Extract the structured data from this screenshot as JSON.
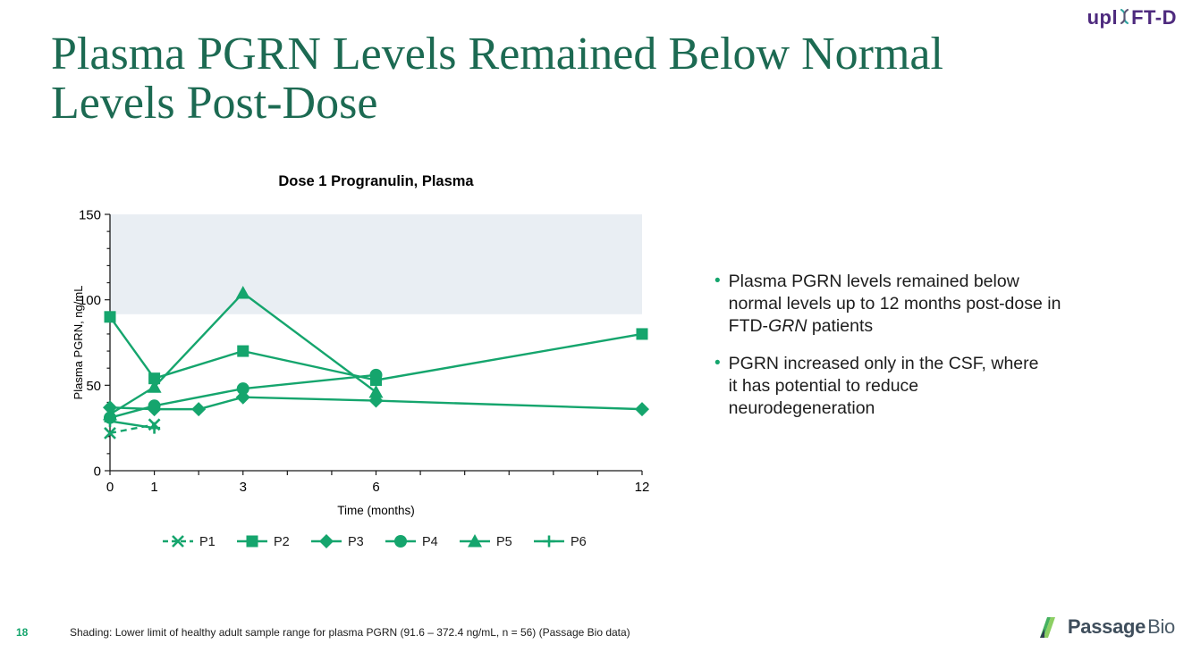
{
  "slide": {
    "title_lines": [
      "Plasma PGRN Levels Remained Below Normal",
      "Levels Post-Dose"
    ]
  },
  "logos": {
    "uplift": {
      "pre": "upl",
      "post": "FT-D"
    },
    "passage": {
      "bold": "Passage",
      "regular": "Bio"
    }
  },
  "bullets": [
    [
      {
        "t": "Plasma PGRN levels remained below\nnormal levels up to 12 months post-dose in\nFTD-"
      },
      {
        "t": "GRN",
        "italic": true
      },
      {
        "t": " patients"
      }
    ],
    [
      {
        "t": "PGRN increased only in the CSF, where\nit has potential to reduce\nneurodegeneration"
      }
    ]
  ],
  "footer": {
    "page_number": "18",
    "note": "Shading: Lower limit of healthy adult sample range for plasma PGRN (91.6 – 372.4 ng/mL, n = 56) (Passage Bio data)"
  },
  "colors": {
    "accent_green": "#15a56d",
    "title_green": "#1c6a52",
    "logo_purple": "#4e2a7e",
    "helix_teal": "#2fa3a0",
    "shading": "#e9eef3",
    "brand_slate": "#3f4e5c",
    "text_dark": "#1d1d1d",
    "axis_black": "#1a1a1a"
  },
  "chart_data": {
    "type": "line",
    "title": "Dose 1 Progranulin, Plasma",
    "xlabel": "Time (months)",
    "ylabel": "Plasma PGRN, ng/mL",
    "xlim": [
      0,
      12
    ],
    "ylim": [
      0,
      150
    ],
    "x_major_ticks": [
      0,
      1,
      3,
      6,
      12
    ],
    "x_minor_step": 1,
    "y_major_ticks": [
      0,
      50,
      100,
      150
    ],
    "y_minor_step": 10,
    "grid": false,
    "legend_position": "bottom",
    "shaded_band": {
      "from": 91.6,
      "to": 150
    },
    "series": [
      {
        "name": "P1",
        "marker": "x",
        "dashed": true,
        "points": [
          [
            0,
            22
          ],
          [
            1,
            27
          ]
        ]
      },
      {
        "name": "P2",
        "marker": "square",
        "dashed": false,
        "points": [
          [
            0,
            90
          ],
          [
            1,
            54
          ],
          [
            3,
            70
          ],
          [
            6,
            53
          ],
          [
            12,
            80
          ]
        ]
      },
      {
        "name": "P3",
        "marker": "diamond",
        "dashed": false,
        "points": [
          [
            0,
            37
          ],
          [
            1,
            36
          ],
          [
            2,
            36
          ],
          [
            3,
            43
          ],
          [
            6,
            41
          ],
          [
            12,
            36
          ]
        ]
      },
      {
        "name": "P4",
        "marker": "circle",
        "dashed": false,
        "points": [
          [
            0,
            31
          ],
          [
            1,
            38
          ],
          [
            3,
            48
          ],
          [
            6,
            56
          ]
        ]
      },
      {
        "name": "P5",
        "marker": "triangle",
        "dashed": false,
        "points": [
          [
            0,
            33
          ],
          [
            1,
            49
          ],
          [
            3,
            104
          ],
          [
            6,
            46
          ]
        ]
      },
      {
        "name": "P6",
        "marker": "plus",
        "dashed": false,
        "points": [
          [
            0,
            29
          ],
          [
            1,
            25
          ]
        ]
      }
    ]
  }
}
